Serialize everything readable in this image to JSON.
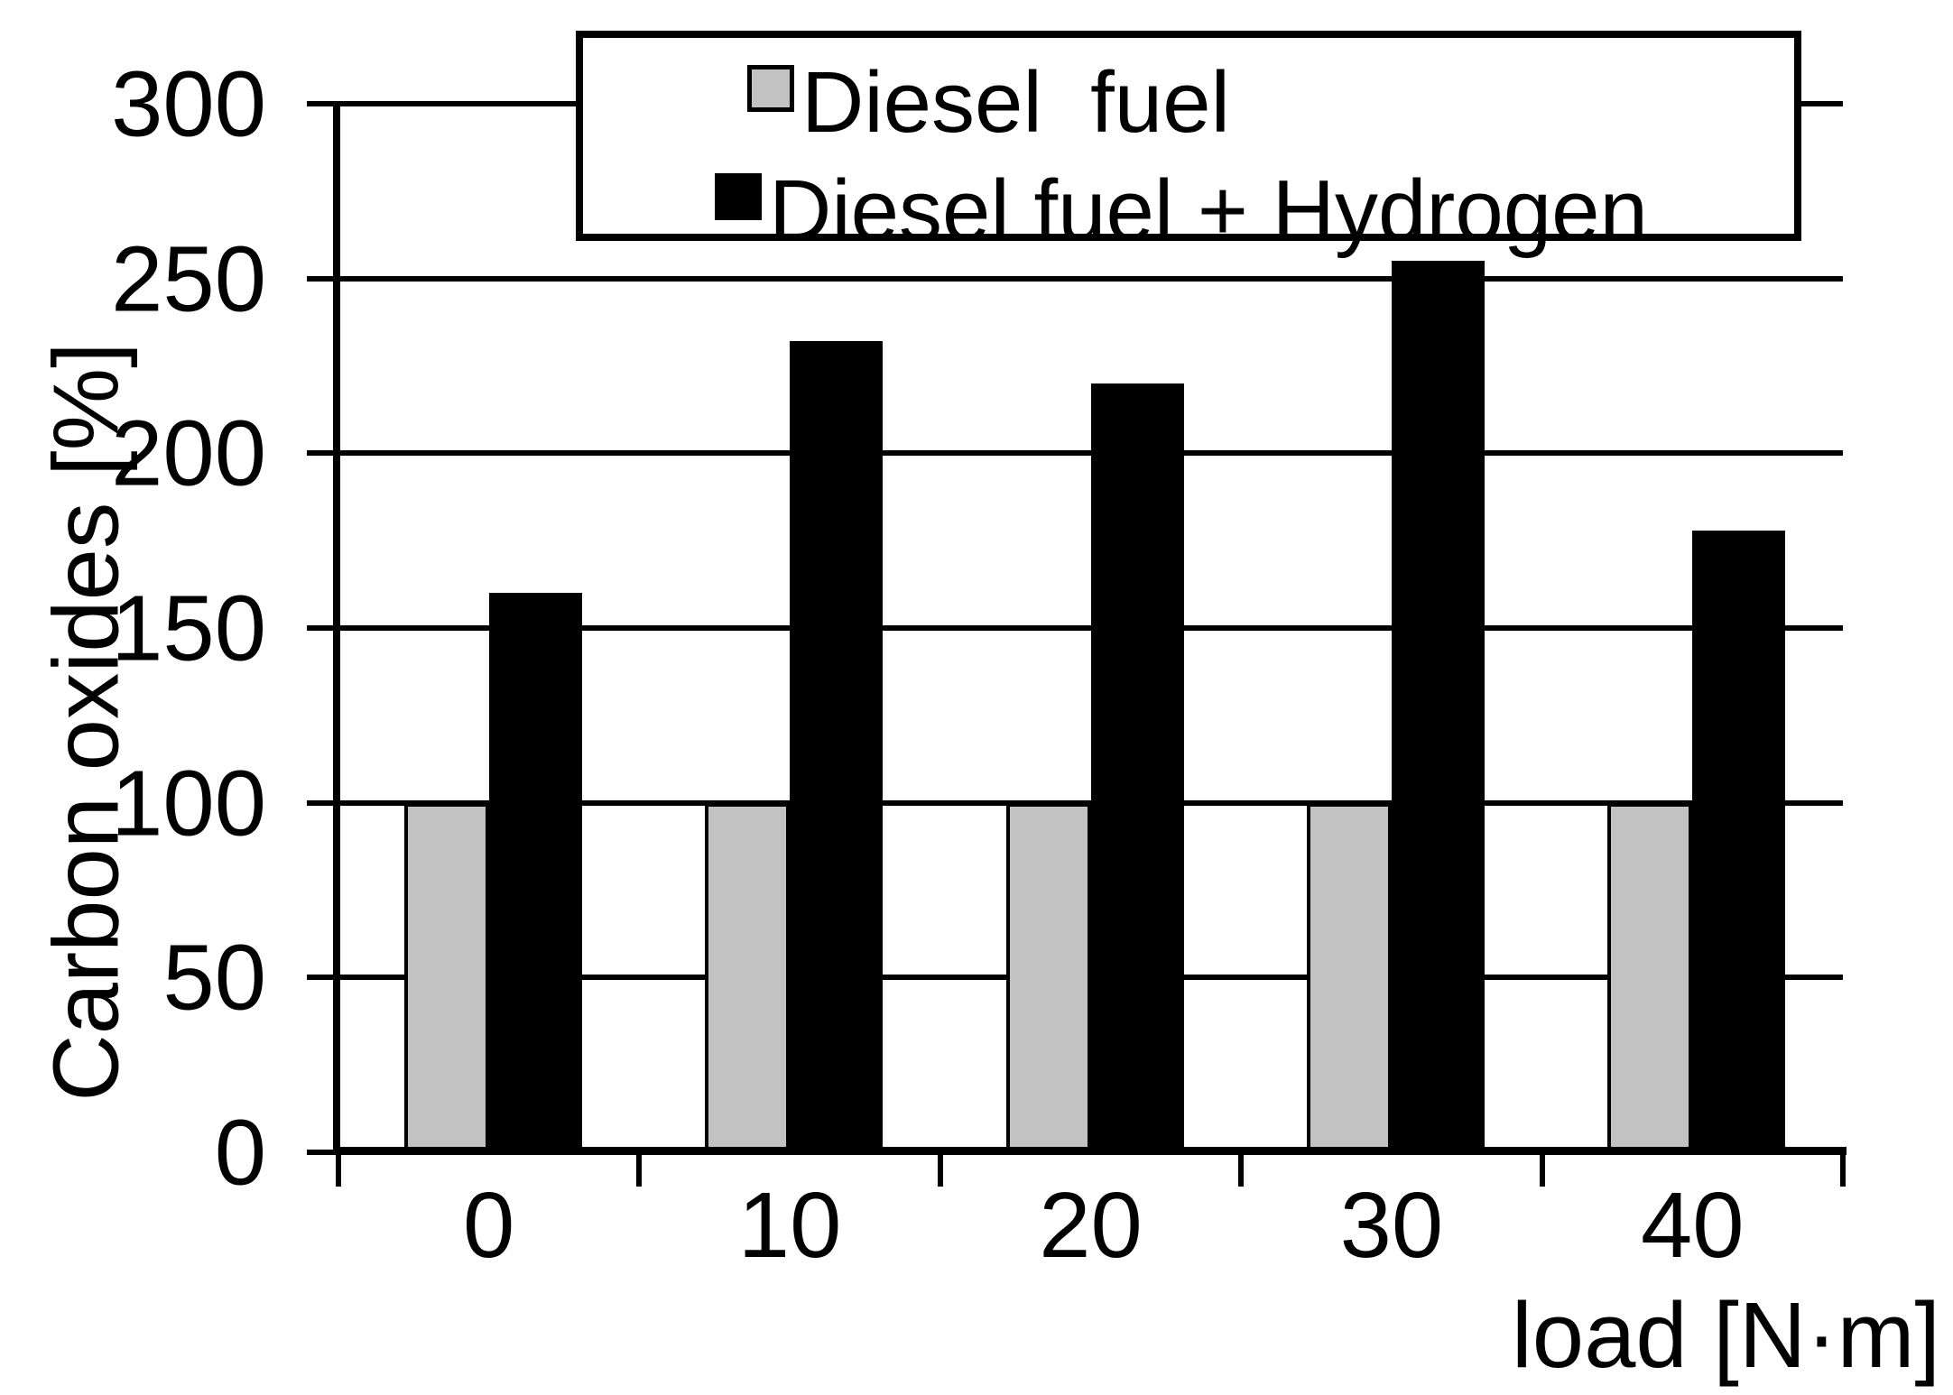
{
  "chart_data": {
    "type": "bar",
    "title": "",
    "categories": [
      "0",
      "10",
      "20",
      "30",
      "40"
    ],
    "series": [
      {
        "name": "Diesel  fuel",
        "color": "#c2c2c2",
        "values": [
          100,
          100,
          100,
          100,
          100
        ]
      },
      {
        "name": "Diesel fuel + Hydrogen",
        "color": "#000000",
        "values": [
          160,
          232,
          220,
          255,
          178
        ]
      }
    ],
    "xlabel": "load [N·m]",
    "ylabel": "Carbon oxides [%]",
    "ylim": [
      0,
      300
    ],
    "yticks": [
      0,
      50,
      100,
      150,
      200,
      250,
      300
    ],
    "grid": true,
    "legend_position": "top-center-inside",
    "bar_outline": "#000000",
    "background": "#ffffff"
  }
}
